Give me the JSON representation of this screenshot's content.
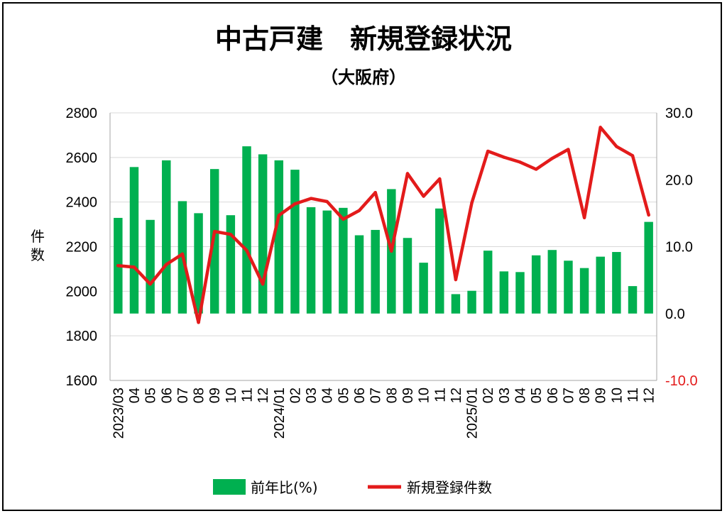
{
  "chart_data": {
    "type": "bar+line",
    "title": "中古戸建　新規登録状況",
    "subtitle": "（大阪府）",
    "ylabel": "件数",
    "y_left": {
      "min": 1600,
      "max": 2800,
      "ticks": [
        "1600",
        "1800",
        "2000",
        "2200",
        "2400",
        "2600",
        "2800"
      ]
    },
    "y_right": {
      "min": -10,
      "max": 30,
      "ticks": [
        "-10.0",
        "0.0",
        "10.0",
        "20.0",
        "30.0"
      ]
    },
    "x_labels": [
      "2023/03",
      "04",
      "05",
      "06",
      "07",
      "08",
      "09",
      "10",
      "11",
      "12",
      "2024/01",
      "02",
      "03",
      "04",
      "05",
      "06",
      "07",
      "08",
      "09",
      "10",
      "11",
      "12",
      "2025/01",
      "02",
      "03",
      "04",
      "05",
      "06",
      "07",
      "08",
      "09",
      "10",
      "11",
      "12"
    ],
    "series": [
      {
        "name": "前年比(%)",
        "type": "bar",
        "axis": "right",
        "color": "#00b050",
        "values": [
          14.3,
          21.9,
          14.0,
          22.9,
          16.8,
          15.0,
          21.6,
          14.7,
          25.0,
          23.8,
          22.9,
          21.5,
          15.9,
          15.4,
          15.8,
          11.7,
          12.5,
          18.6,
          11.3,
          7.6,
          15.7,
          2.9,
          3.4,
          9.4,
          6.3,
          6.2,
          8.7,
          9.5,
          7.9,
          6.8,
          8.5,
          9.2,
          4.1,
          13.7
        ]
      },
      {
        "name": "新規登録件数",
        "type": "line",
        "axis": "left",
        "color": "#e31b1b",
        "values": [
          2115,
          2108,
          2032,
          2120,
          2167,
          1860,
          2268,
          2255,
          2183,
          2032,
          2340,
          2392,
          2416,
          2402,
          2323,
          2362,
          2443,
          2180,
          2528,
          2426,
          2504,
          2052,
          2397,
          2628,
          2601,
          2579,
          2547,
          2596,
          2636,
          2330,
          2735,
          2649,
          2608,
          2342
        ]
      }
    ]
  },
  "legend": {
    "bar_label": "前年比(%)",
    "line_label": "新規登録件数"
  }
}
